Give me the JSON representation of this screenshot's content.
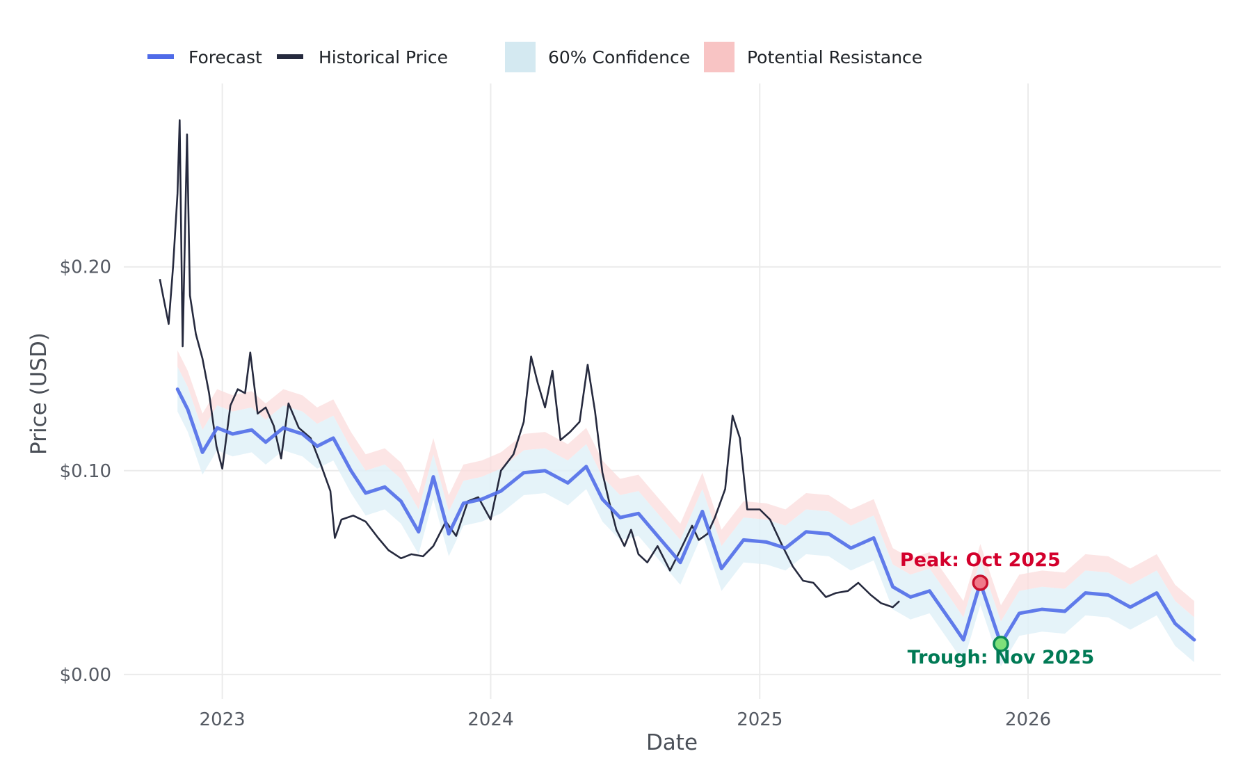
{
  "chart_data": {
    "type": "line",
    "title": "",
    "xlabel": "Date",
    "ylabel": "Price (USD)",
    "ylim": [
      -0.012,
      0.29
    ],
    "xlim": [
      "2022-08-20",
      "2026-09-20"
    ],
    "x_ticks": [
      {
        "date": "2023-01-01",
        "label": "2023"
      },
      {
        "date": "2024-01-01",
        "label": "2024"
      },
      {
        "date": "2025-01-01",
        "label": "2025"
      },
      {
        "date": "2026-01-01",
        "label": "2026"
      }
    ],
    "y_ticks": [
      {
        "value": 0.0,
        "label": "$0.00"
      },
      {
        "value": 0.1,
        "label": "$0.10"
      },
      {
        "value": 0.2,
        "label": "$0.20"
      }
    ],
    "grid": true,
    "legend_position": "top",
    "legend": [
      {
        "label": "Forecast",
        "kind": "line",
        "color": "#4f6be8"
      },
      {
        "label": "Historical Price",
        "kind": "line",
        "color": "#262a3e"
      },
      {
        "label": "60% Confidence",
        "kind": "patch",
        "color": "#d4e9f1"
      },
      {
        "label": "Potential Resistance",
        "kind": "patch",
        "color": "#f8c4c4"
      }
    ],
    "colors": {
      "forecast": "#5470e8",
      "historical": "#262a3e",
      "confidence_fill": "#dff0f7",
      "resistance_fill": "#fbdcdc",
      "peak": "#d3002c",
      "trough": "#007a55"
    },
    "series": [
      {
        "name": "Historical Price",
        "points": [
          [
            "2022-10-08",
            0.194
          ],
          [
            "2022-10-14",
            0.183
          ],
          [
            "2022-10-20",
            0.172
          ],
          [
            "2022-10-26",
            0.2
          ],
          [
            "2022-11-01",
            0.236
          ],
          [
            "2022-11-04",
            0.272
          ],
          [
            "2022-11-08",
            0.161
          ],
          [
            "2022-11-12",
            0.23
          ],
          [
            "2022-11-14",
            0.265
          ],
          [
            "2022-11-18",
            0.186
          ],
          [
            "2022-11-26",
            0.167
          ],
          [
            "2022-12-05",
            0.155
          ],
          [
            "2022-12-14",
            0.138
          ],
          [
            "2022-12-24",
            0.112
          ],
          [
            "2023-01-01",
            0.101
          ],
          [
            "2023-01-12",
            0.132
          ],
          [
            "2023-01-22",
            0.14
          ],
          [
            "2023-02-01",
            0.138
          ],
          [
            "2023-02-08",
            0.158
          ],
          [
            "2023-02-18",
            0.128
          ],
          [
            "2023-03-01",
            0.131
          ],
          [
            "2023-03-12",
            0.122
          ],
          [
            "2023-03-22",
            0.106
          ],
          [
            "2023-04-01",
            0.133
          ],
          [
            "2023-04-15",
            0.121
          ],
          [
            "2023-05-01",
            0.116
          ],
          [
            "2023-05-15",
            0.103
          ],
          [
            "2023-05-28",
            0.09
          ],
          [
            "2023-06-03",
            0.067
          ],
          [
            "2023-06-12",
            0.076
          ],
          [
            "2023-06-28",
            0.078
          ],
          [
            "2023-07-15",
            0.075
          ],
          [
            "2023-08-01",
            0.067
          ],
          [
            "2023-08-15",
            0.061
          ],
          [
            "2023-09-01",
            0.057
          ],
          [
            "2023-09-15",
            0.059
          ],
          [
            "2023-10-01",
            0.058
          ],
          [
            "2023-10-15",
            0.063
          ],
          [
            "2023-11-01",
            0.075
          ],
          [
            "2023-11-15",
            0.068
          ],
          [
            "2023-12-01",
            0.085
          ],
          [
            "2023-12-15",
            0.087
          ],
          [
            "2024-01-01",
            0.076
          ],
          [
            "2024-01-15",
            0.1
          ],
          [
            "2024-02-01",
            0.108
          ],
          [
            "2024-02-15",
            0.124
          ],
          [
            "2024-02-25",
            0.156
          ],
          [
            "2024-03-05",
            0.143
          ],
          [
            "2024-03-15",
            0.131
          ],
          [
            "2024-03-25",
            0.149
          ],
          [
            "2024-04-05",
            0.115
          ],
          [
            "2024-04-18",
            0.119
          ],
          [
            "2024-05-01",
            0.124
          ],
          [
            "2024-05-12",
            0.152
          ],
          [
            "2024-05-22",
            0.129
          ],
          [
            "2024-06-01",
            0.099
          ],
          [
            "2024-06-10",
            0.085
          ],
          [
            "2024-06-20",
            0.071
          ],
          [
            "2024-07-01",
            0.063
          ],
          [
            "2024-07-10",
            0.071
          ],
          [
            "2024-07-20",
            0.059
          ],
          [
            "2024-08-01",
            0.055
          ],
          [
            "2024-08-15",
            0.063
          ],
          [
            "2024-09-01",
            0.051
          ],
          [
            "2024-09-15",
            0.061
          ],
          [
            "2024-10-01",
            0.073
          ],
          [
            "2024-10-10",
            0.066
          ],
          [
            "2024-10-22",
            0.069
          ],
          [
            "2024-11-01",
            0.077
          ],
          [
            "2024-11-15",
            0.091
          ],
          [
            "2024-11-25",
            0.127
          ],
          [
            "2024-12-05",
            0.116
          ],
          [
            "2024-12-15",
            0.081
          ],
          [
            "2025-01-01",
            0.081
          ],
          [
            "2025-01-15",
            0.076
          ],
          [
            "2025-02-01",
            0.063
          ],
          [
            "2025-02-15",
            0.053
          ],
          [
            "2025-03-01",
            0.046
          ],
          [
            "2025-03-15",
            0.045
          ],
          [
            "2025-04-01",
            0.038
          ],
          [
            "2025-04-15",
            0.04
          ],
          [
            "2025-05-01",
            0.041
          ],
          [
            "2025-05-15",
            0.045
          ],
          [
            "2025-06-01",
            0.039
          ],
          [
            "2025-06-15",
            0.035
          ],
          [
            "2025-07-01",
            0.033
          ],
          [
            "2025-07-10",
            0.036
          ]
        ]
      },
      {
        "name": "Forecast",
        "points": [
          [
            "2022-11-01",
            0.14
          ],
          [
            "2022-11-15",
            0.13
          ],
          [
            "2022-12-05",
            0.109
          ],
          [
            "2022-12-25",
            0.121
          ],
          [
            "2023-01-15",
            0.118
          ],
          [
            "2023-02-10",
            0.12
          ],
          [
            "2023-03-01",
            0.114
          ],
          [
            "2023-03-25",
            0.121
          ],
          [
            "2023-04-20",
            0.118
          ],
          [
            "2023-05-10",
            0.112
          ],
          [
            "2023-06-01",
            0.116
          ],
          [
            "2023-06-25",
            0.1
          ],
          [
            "2023-07-15",
            0.089
          ],
          [
            "2023-08-10",
            0.092
          ],
          [
            "2023-09-01",
            0.085
          ],
          [
            "2023-09-25",
            0.07
          ],
          [
            "2023-10-15",
            0.097
          ],
          [
            "2023-11-05",
            0.069
          ],
          [
            "2023-11-25",
            0.084
          ],
          [
            "2023-12-20",
            0.086
          ],
          [
            "2024-01-15",
            0.09
          ],
          [
            "2024-02-15",
            0.099
          ],
          [
            "2024-03-15",
            0.1
          ],
          [
            "2024-04-15",
            0.094
          ],
          [
            "2024-05-10",
            0.102
          ],
          [
            "2024-06-01",
            0.086
          ],
          [
            "2024-06-25",
            0.077
          ],
          [
            "2024-07-20",
            0.079
          ],
          [
            "2024-08-15",
            0.068
          ],
          [
            "2024-09-15",
            0.055
          ],
          [
            "2024-10-15",
            0.08
          ],
          [
            "2024-11-10",
            0.052
          ],
          [
            "2024-12-10",
            0.066
          ],
          [
            "2025-01-10",
            0.065
          ],
          [
            "2025-02-05",
            0.062
          ],
          [
            "2025-03-05",
            0.07
          ],
          [
            "2025-04-05",
            0.069
          ],
          [
            "2025-05-05",
            0.062
          ],
          [
            "2025-06-05",
            0.067
          ],
          [
            "2025-07-01",
            0.043
          ],
          [
            "2025-07-25",
            0.038
          ],
          [
            "2025-08-20",
            0.041
          ],
          [
            "2025-09-20",
            0.025
          ],
          [
            "2025-10-05",
            0.017
          ],
          [
            "2025-10-28",
            0.045
          ],
          [
            "2025-11-25",
            0.015
          ],
          [
            "2025-12-20",
            0.03
          ],
          [
            "2026-01-20",
            0.032
          ],
          [
            "2026-02-20",
            0.031
          ],
          [
            "2026-03-20",
            0.04
          ],
          [
            "2026-04-20",
            0.039
          ],
          [
            "2026-05-20",
            0.033
          ],
          [
            "2026-06-25",
            0.04
          ],
          [
            "2026-07-20",
            0.025
          ],
          [
            "2026-08-15",
            0.017
          ]
        ]
      }
    ],
    "annotations": [
      {
        "label": "Peak: Oct 2025",
        "date": "2025-10-28",
        "value": 0.045,
        "color": "#d3002c",
        "marker_fill": "#f07a8a",
        "marker_stroke": "#c8102e"
      },
      {
        "label": "Trough: Nov 2025",
        "date": "2025-11-25",
        "value": 0.015,
        "color": "#007a55",
        "marker_fill": "#7fe07a",
        "marker_stroke": "#0b8a54"
      }
    ]
  }
}
